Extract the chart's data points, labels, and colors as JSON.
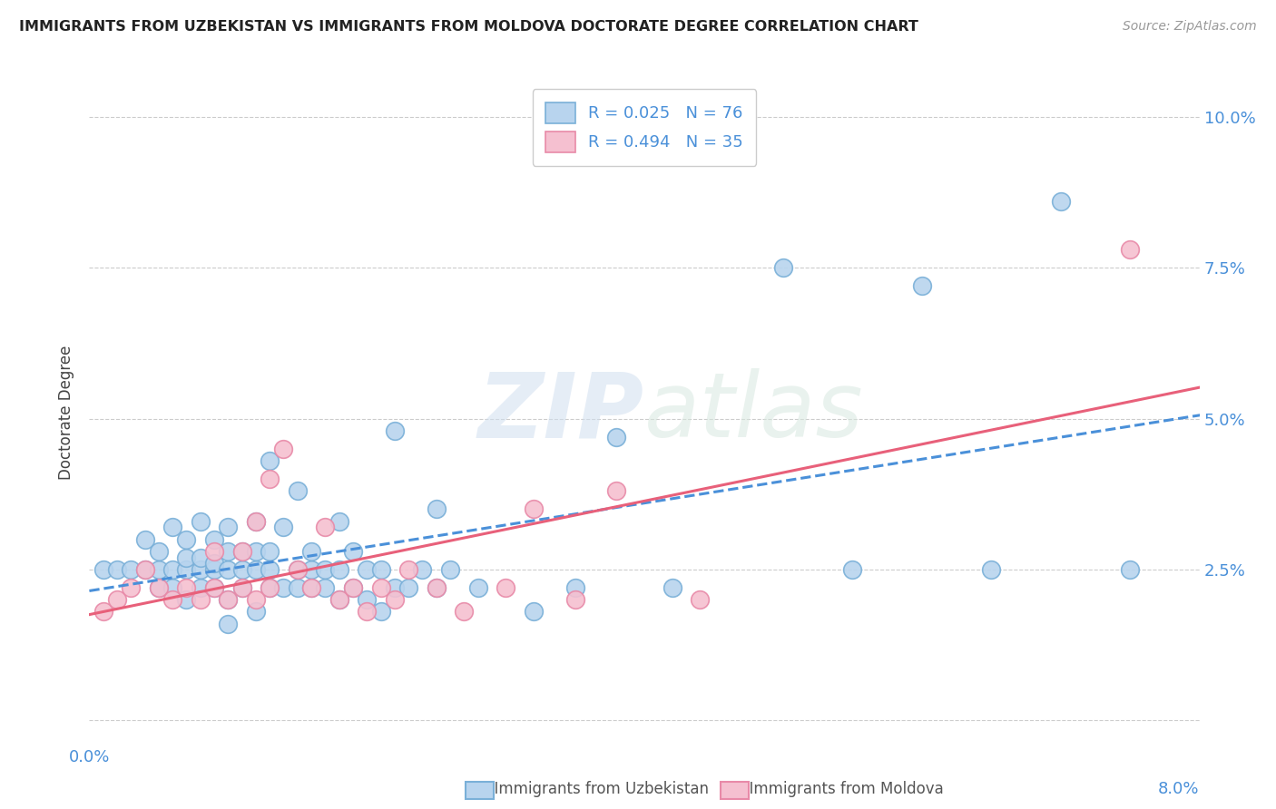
{
  "title": "IMMIGRANTS FROM UZBEKISTAN VS IMMIGRANTS FROM MOLDOVA DOCTORATE DEGREE CORRELATION CHART",
  "source": "Source: ZipAtlas.com",
  "ylabel": "Doctorate Degree",
  "yaxis_ticks": [
    0.0,
    0.025,
    0.05,
    0.075,
    0.1
  ],
  "yaxis_labels": [
    "",
    "2.5%",
    "5.0%",
    "7.5%",
    "10.0%"
  ],
  "xlim": [
    0.0,
    0.08
  ],
  "ylim": [
    -0.004,
    0.106
  ],
  "uzbekistan_color": "#b8d4ee",
  "uzbekistan_edge": "#7ab0d8",
  "moldova_color": "#f5c0d0",
  "moldova_edge": "#e88aa8",
  "regression_uzbekistan_color": "#4a90d9",
  "regression_moldova_color": "#e8607a",
  "watermark_zip": "ZIP",
  "watermark_atlas": "atlas",
  "uzbekistan_x": [
    0.001,
    0.002,
    0.003,
    0.004,
    0.004,
    0.005,
    0.005,
    0.005,
    0.006,
    0.006,
    0.006,
    0.007,
    0.007,
    0.007,
    0.007,
    0.008,
    0.008,
    0.008,
    0.008,
    0.009,
    0.009,
    0.009,
    0.009,
    0.01,
    0.01,
    0.01,
    0.01,
    0.01,
    0.011,
    0.011,
    0.011,
    0.012,
    0.012,
    0.012,
    0.012,
    0.013,
    0.013,
    0.013,
    0.013,
    0.014,
    0.014,
    0.015,
    0.015,
    0.015,
    0.016,
    0.016,
    0.016,
    0.017,
    0.017,
    0.018,
    0.018,
    0.018,
    0.019,
    0.019,
    0.02,
    0.02,
    0.021,
    0.021,
    0.022,
    0.022,
    0.023,
    0.024,
    0.025,
    0.025,
    0.026,
    0.028,
    0.032,
    0.035,
    0.038,
    0.042,
    0.05,
    0.055,
    0.06,
    0.065,
    0.07,
    0.075
  ],
  "uzbekistan_y": [
    0.025,
    0.025,
    0.025,
    0.025,
    0.03,
    0.022,
    0.025,
    0.028,
    0.022,
    0.025,
    0.032,
    0.02,
    0.025,
    0.027,
    0.03,
    0.022,
    0.025,
    0.027,
    0.033,
    0.022,
    0.025,
    0.026,
    0.03,
    0.016,
    0.02,
    0.025,
    0.028,
    0.032,
    0.022,
    0.025,
    0.028,
    0.018,
    0.025,
    0.028,
    0.033,
    0.022,
    0.025,
    0.028,
    0.043,
    0.022,
    0.032,
    0.022,
    0.025,
    0.038,
    0.022,
    0.025,
    0.028,
    0.022,
    0.025,
    0.02,
    0.025,
    0.033,
    0.022,
    0.028,
    0.02,
    0.025,
    0.018,
    0.025,
    0.022,
    0.048,
    0.022,
    0.025,
    0.022,
    0.035,
    0.025,
    0.022,
    0.018,
    0.022,
    0.047,
    0.022,
    0.075,
    0.025,
    0.072,
    0.025,
    0.086,
    0.025
  ],
  "moldova_x": [
    0.001,
    0.002,
    0.003,
    0.004,
    0.005,
    0.006,
    0.007,
    0.008,
    0.009,
    0.009,
    0.01,
    0.011,
    0.011,
    0.012,
    0.012,
    0.013,
    0.013,
    0.014,
    0.015,
    0.016,
    0.017,
    0.018,
    0.019,
    0.02,
    0.021,
    0.022,
    0.023,
    0.025,
    0.027,
    0.03,
    0.032,
    0.035,
    0.038,
    0.044,
    0.075
  ],
  "moldova_y": [
    0.018,
    0.02,
    0.022,
    0.025,
    0.022,
    0.02,
    0.022,
    0.02,
    0.022,
    0.028,
    0.02,
    0.022,
    0.028,
    0.02,
    0.033,
    0.022,
    0.04,
    0.045,
    0.025,
    0.022,
    0.032,
    0.02,
    0.022,
    0.018,
    0.022,
    0.02,
    0.025,
    0.022,
    0.018,
    0.022,
    0.035,
    0.02,
    0.038,
    0.02,
    0.078
  ]
}
